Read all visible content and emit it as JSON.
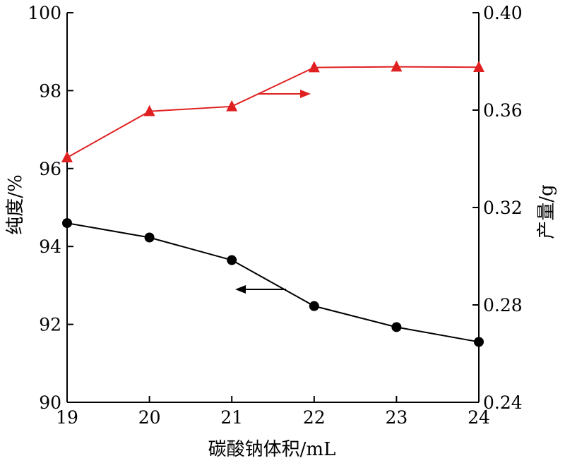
{
  "chart_data": {
    "type": "line",
    "xlabel": "碳酸钠体积/mL",
    "ylabel_left": "纯度/%",
    "ylabel_right": "产量/g",
    "x": [
      19,
      20,
      21,
      22,
      23,
      24
    ],
    "xticks": [
      "19",
      "20",
      "21",
      "22",
      "23",
      "24"
    ],
    "xlim": [
      19,
      24
    ],
    "ylim_left": [
      90,
      100
    ],
    "yticks_left": [
      "90",
      "92",
      "94",
      "96",
      "98",
      "100"
    ],
    "ylim_right": [
      0.24,
      0.4
    ],
    "yticks_right": [
      "0.24",
      "0.28",
      "0.32",
      "0.36",
      "0.40"
    ],
    "grid": false,
    "series": [
      {
        "axis": "left",
        "marker": "circle",
        "color": "#000000",
        "values": [
          94.6,
          94.23,
          93.65,
          92.47,
          91.93,
          91.55
        ]
      },
      {
        "axis": "right",
        "marker": "triangle",
        "color": "#e02020",
        "values": [
          0.3405,
          0.3595,
          0.3615,
          0.3775,
          0.3778,
          0.3776
        ]
      }
    ],
    "annotations": [
      {
        "type": "arrow",
        "direction": "left",
        "points_to_axis": "left",
        "color": "#000000"
      },
      {
        "type": "arrow",
        "direction": "right",
        "points_to_axis": "right",
        "color": "#e02020"
      }
    ]
  }
}
